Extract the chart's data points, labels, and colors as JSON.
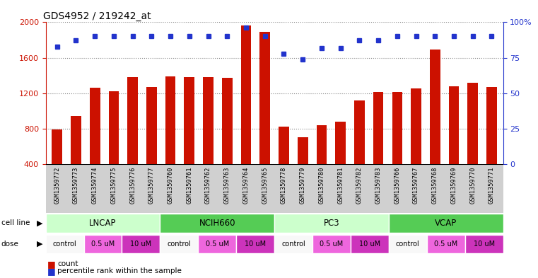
{
  "title": "GDS4952 / 219242_at",
  "samples": [
    "GSM1359772",
    "GSM1359773",
    "GSM1359774",
    "GSM1359775",
    "GSM1359776",
    "GSM1359777",
    "GSM1359760",
    "GSM1359761",
    "GSM1359762",
    "GSM1359763",
    "GSM1359764",
    "GSM1359765",
    "GSM1359778",
    "GSM1359779",
    "GSM1359780",
    "GSM1359781",
    "GSM1359782",
    "GSM1359783",
    "GSM1359766",
    "GSM1359767",
    "GSM1359768",
    "GSM1359769",
    "GSM1359770",
    "GSM1359771"
  ],
  "counts": [
    790,
    940,
    1260,
    1220,
    1380,
    1270,
    1390,
    1380,
    1380,
    1370,
    1960,
    1890,
    820,
    700,
    840,
    880,
    1120,
    1210,
    1210,
    1250,
    1690,
    1280,
    1320,
    1270
  ],
  "percentiles": [
    83,
    87,
    90,
    90,
    90,
    90,
    90,
    90,
    90,
    90,
    96,
    90,
    78,
    74,
    82,
    82,
    87,
    87,
    90,
    90,
    90,
    90,
    90,
    90
  ],
  "cell_lines": [
    {
      "name": "LNCAP",
      "start": 0,
      "end": 6,
      "color": "#ccffcc"
    },
    {
      "name": "NCIH660",
      "start": 6,
      "end": 12,
      "color": "#55cc55"
    },
    {
      "name": "PC3",
      "start": 12,
      "end": 18,
      "color": "#ccffcc"
    },
    {
      "name": "VCAP",
      "start": 18,
      "end": 24,
      "color": "#55cc55"
    }
  ],
  "dose_segments": [
    {
      "start": 0,
      "end": 2,
      "label": "control",
      "color": "#f8f8f8"
    },
    {
      "start": 2,
      "end": 4,
      "label": "0.5 uM",
      "color": "#ee66dd"
    },
    {
      "start": 4,
      "end": 6,
      "label": "10 uM",
      "color": "#cc33bb"
    },
    {
      "start": 6,
      "end": 8,
      "label": "control",
      "color": "#f8f8f8"
    },
    {
      "start": 8,
      "end": 10,
      "label": "0.5 uM",
      "color": "#ee66dd"
    },
    {
      "start": 10,
      "end": 12,
      "label": "10 uM",
      "color": "#cc33bb"
    },
    {
      "start": 12,
      "end": 14,
      "label": "control",
      "color": "#f8f8f8"
    },
    {
      "start": 14,
      "end": 16,
      "label": "0.5 uM",
      "color": "#ee66dd"
    },
    {
      "start": 16,
      "end": 18,
      "label": "10 uM",
      "color": "#cc33bb"
    },
    {
      "start": 18,
      "end": 20,
      "label": "control",
      "color": "#f8f8f8"
    },
    {
      "start": 20,
      "end": 22,
      "label": "0.5 uM",
      "color": "#ee66dd"
    },
    {
      "start": 22,
      "end": 24,
      "label": "10 uM",
      "color": "#cc33bb"
    }
  ],
  "ylim_left": [
    400,
    2000
  ],
  "yticks_left": [
    400,
    800,
    1200,
    1600,
    2000
  ],
  "ylim_right": [
    0,
    100
  ],
  "yticks_right": [
    0,
    25,
    50,
    75,
    100
  ],
  "bar_color": "#cc1100",
  "dot_color": "#2233cc",
  "grid_color": "#888888",
  "xticklabel_bg": "#cccccc"
}
